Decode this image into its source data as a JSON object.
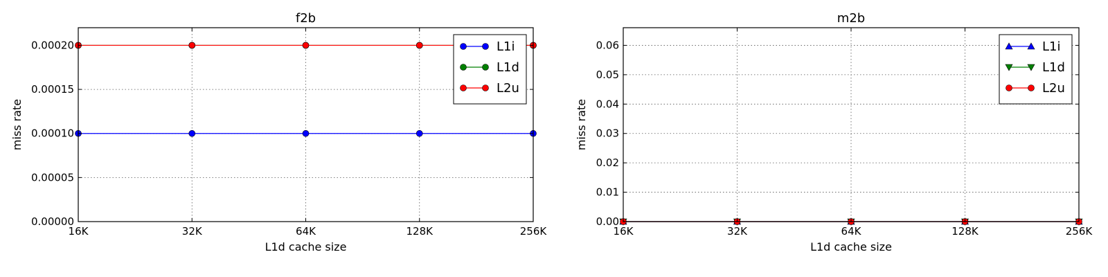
{
  "chart_data": [
    {
      "type": "line",
      "title": "f2b",
      "xlabel": "L1d cache size",
      "ylabel": "miss rate",
      "categories": [
        "16K",
        "32K",
        "64K",
        "128K",
        "256K"
      ],
      "ylim": [
        0,
        0.00022
      ],
      "yticks": [
        "0.00000",
        "0.00005",
        "0.00010",
        "0.00015",
        "0.00020"
      ],
      "ytick_values": [
        0,
        5e-05,
        0.0001,
        0.00015,
        0.0002
      ],
      "grid": true,
      "legend_position": "top-right",
      "series": [
        {
          "name": "L1i",
          "values": [
            0.0001,
            0.0001,
            0.0001,
            0.0001,
            0.0001
          ],
          "color": "#0000ff",
          "marker": "circle"
        },
        {
          "name": "L1d",
          "values": [
            0.0002,
            0.0002,
            0.0002,
            0.0002,
            0.0002
          ],
          "color": "#008000",
          "marker": "circle"
        },
        {
          "name": "L2u",
          "values": [
            0.0002,
            0.0002,
            0.0002,
            0.0002,
            0.0002
          ],
          "color": "#ff0000",
          "marker": "circle"
        }
      ]
    },
    {
      "type": "line",
      "title": "m2b",
      "xlabel": "L1d cache size",
      "ylabel": "miss rate",
      "categories": [
        "16K",
        "32K",
        "64K",
        "128K",
        "256K"
      ],
      "ylim": [
        0,
        0.066
      ],
      "yticks": [
        "0.00",
        "0.01",
        "0.02",
        "0.03",
        "0.04",
        "0.05",
        "0.06"
      ],
      "ytick_values": [
        0,
        0.01,
        0.02,
        0.03,
        0.04,
        0.05,
        0.06
      ],
      "grid": true,
      "legend_position": "top-right",
      "series": [
        {
          "name": "L1i",
          "values": [
            0,
            0,
            0,
            0,
            0
          ],
          "color": "#0000ff",
          "marker": "triangle-up"
        },
        {
          "name": "L1d",
          "values": [
            0,
            0,
            0,
            0,
            0
          ],
          "color": "#008000",
          "marker": "triangle-down"
        },
        {
          "name": "L2u",
          "values": [
            0,
            0,
            0,
            0,
            0
          ],
          "color": "#ff0000",
          "marker": "circle"
        }
      ]
    }
  ]
}
